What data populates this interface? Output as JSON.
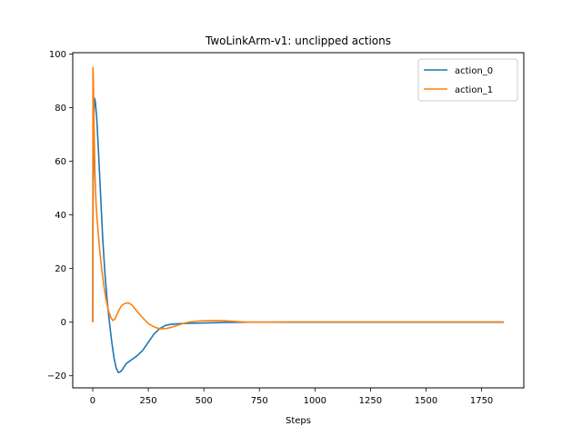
{
  "chart_data": {
    "type": "line",
    "title": "TwoLinkArm-v1: unclipped actions",
    "xlabel": "Steps",
    "ylabel": "",
    "xlim": [
      -90,
      1940
    ],
    "ylim": [
      -24.5,
      100.5
    ],
    "xticks": [
      0,
      250,
      500,
      750,
      1000,
      1250,
      1500,
      1750
    ],
    "yticks": [
      -20,
      0,
      20,
      40,
      60,
      80,
      100
    ],
    "grid": false,
    "legend_position": "top-right",
    "series": [
      {
        "name": "action_0",
        "color": "#1f77b4",
        "points": [
          [
            0,
            0
          ],
          [
            1,
            40
          ],
          [
            4,
            75
          ],
          [
            8,
            83.5
          ],
          [
            12,
            82
          ],
          [
            18,
            76
          ],
          [
            25,
            65
          ],
          [
            35,
            48
          ],
          [
            45,
            31
          ],
          [
            55,
            18
          ],
          [
            65,
            8
          ],
          [
            75,
            0
          ],
          [
            85,
            -7
          ],
          [
            95,
            -13
          ],
          [
            105,
            -17
          ],
          [
            115,
            -18.8
          ],
          [
            125,
            -18.5
          ],
          [
            135,
            -17.5
          ],
          [
            150,
            -15.5
          ],
          [
            175,
            -14
          ],
          [
            200,
            -12.5
          ],
          [
            225,
            -10.5
          ],
          [
            250,
            -7.5
          ],
          [
            275,
            -4.5
          ],
          [
            300,
            -2.5
          ],
          [
            325,
            -1.3
          ],
          [
            350,
            -0.8
          ],
          [
            400,
            -0.5
          ],
          [
            450,
            -0.4
          ],
          [
            500,
            -0.3
          ],
          [
            550,
            -0.2
          ],
          [
            600,
            -0.1
          ],
          [
            700,
            0
          ],
          [
            800,
            0
          ],
          [
            900,
            0
          ],
          [
            1000,
            0
          ],
          [
            1100,
            0
          ],
          [
            1200,
            0
          ],
          [
            1300,
            0
          ],
          [
            1400,
            0
          ],
          [
            1500,
            0
          ],
          [
            1600,
            0
          ],
          [
            1700,
            0
          ],
          [
            1800,
            0
          ],
          [
            1850,
            0
          ]
        ]
      },
      {
        "name": "action_1",
        "color": "#ff7f0e",
        "points": [
          [
            0,
            0
          ],
          [
            1,
            95
          ],
          [
            3,
            90
          ],
          [
            6,
            72
          ],
          [
            10,
            55
          ],
          [
            15,
            44
          ],
          [
            20,
            38
          ],
          [
            30,
            28
          ],
          [
            40,
            20
          ],
          [
            50,
            13.5
          ],
          [
            60,
            8.5
          ],
          [
            70,
            4.5
          ],
          [
            80,
            2
          ],
          [
            90,
            0.6
          ],
          [
            100,
            1.2
          ],
          [
            110,
            3
          ],
          [
            120,
            4.8
          ],
          [
            130,
            6.2
          ],
          [
            145,
            7
          ],
          [
            160,
            7.2
          ],
          [
            175,
            6.5
          ],
          [
            190,
            5
          ],
          [
            210,
            3
          ],
          [
            230,
            1.2
          ],
          [
            250,
            -0.5
          ],
          [
            270,
            -1.5
          ],
          [
            290,
            -2.2
          ],
          [
            310,
            -2.5
          ],
          [
            330,
            -2.4
          ],
          [
            350,
            -2
          ],
          [
            380,
            -1.2
          ],
          [
            410,
            -0.4
          ],
          [
            440,
            0.1
          ],
          [
            470,
            0.4
          ],
          [
            500,
            0.5
          ],
          [
            550,
            0.6
          ],
          [
            600,
            0.5
          ],
          [
            650,
            0.2
          ],
          [
            700,
            0
          ],
          [
            800,
            0
          ],
          [
            900,
            0.1
          ],
          [
            1000,
            0.1
          ],
          [
            1100,
            0.1
          ],
          [
            1200,
            0.1
          ],
          [
            1300,
            0.1
          ],
          [
            1400,
            0.1
          ],
          [
            1500,
            0.1
          ],
          [
            1600,
            0.1
          ],
          [
            1700,
            0.1
          ],
          [
            1800,
            0.1
          ],
          [
            1850,
            0.1
          ]
        ]
      }
    ]
  }
}
